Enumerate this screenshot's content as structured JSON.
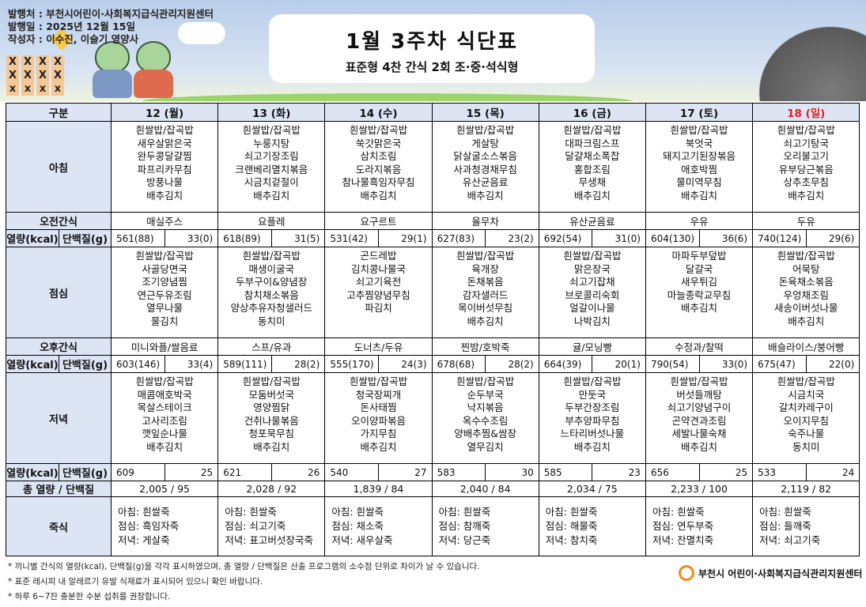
{
  "header": {
    "publisher": "발행처 : 부천시어린이·사회복지급식관리지원센터",
    "date": "발행일 : 2025년 12월 15일",
    "author": "작성자 : 이수진, 이슬기 영양사",
    "title": "1월 3주차 식단표",
    "subtitle": "표준형 4찬 간식 2회 조·중·석식형"
  },
  "labels": {
    "category": "구분",
    "breakfast": "아침",
    "am_snack": "오전간식",
    "kcal": "열량(kcal)",
    "protein": "단백질(g)",
    "lunch": "점심",
    "pm_snack": "오후간식",
    "dinner": "저녁",
    "total": "총 열량 / 단백질",
    "porridge": "죽식"
  },
  "colors": {
    "header_bg": "#dde5f4",
    "sunday": "#e02020"
  },
  "days": [
    {
      "date": "12 (월)",
      "breakfast": [
        "흰쌀밥/잡곡밥",
        "새우살맑은국",
        "완두콩달걀찜",
        "파프리카무침",
        "방풍나물",
        "배추김치"
      ],
      "am_snack": "매실주스",
      "am_kcal": "561(88)",
      "am_protein": "33(0)",
      "lunch": [
        "흰쌀밥/잡곡밥",
        "사골당면국",
        "조기양념찜",
        "연근두유조림",
        "열무나물",
        "물김치"
      ],
      "pm_snack": "미니와플/쌀음료",
      "pm_kcal": "603(146)",
      "pm_protein": "33(4)",
      "dinner": [
        "흰쌀밥/잡곡밥",
        "매콤애호박국",
        "목살스테이크",
        "고사리조림",
        "깻잎순나물",
        "배추김치"
      ],
      "dn_kcal": "609",
      "dn_protein": "25",
      "total": "2,005  /  95",
      "porridge": [
        "아침: 흰쌀죽",
        "점심: 흑임자죽",
        "저녁: 게살죽"
      ]
    },
    {
      "date": "13 (화)",
      "breakfast": [
        "흰쌀밥/잡곡밥",
        "누룽지탕",
        "쇠고기장조림",
        "크랜베리멸치볶음",
        "시금치겉절이",
        "배추김치"
      ],
      "am_snack": "요플레",
      "am_kcal": "618(89)",
      "am_protein": "31(5)",
      "lunch": [
        "흰쌀밥/잡곡밥",
        "매생이굴국",
        "두부구이&양념장",
        "참치채소볶음",
        "양상추유자청샐러드",
        "동치미"
      ],
      "pm_snack": "스프/유과",
      "pm_kcal": "589(111)",
      "pm_protein": "28(2)",
      "dinner": [
        "흰쌀밥/잡곡밥",
        "모둠버섯국",
        "영양찜닭",
        "건취나물볶음",
        "청포묵무침",
        "배추김치"
      ],
      "dn_kcal": "621",
      "dn_protein": "26",
      "total": "2,028  /  92",
      "porridge": [
        "아침: 흰쌀죽",
        "점심: 쇠고기죽",
        "저녁: 표고버섯장국죽"
      ]
    },
    {
      "date": "14 (수)",
      "breakfast": [
        "흰쌀밥/잡곡밥",
        "쑥갓맑은국",
        "삼치조림",
        "도라지볶음",
        "참나물흑임자무침",
        "배추김치"
      ],
      "am_snack": "요구르트",
      "am_kcal": "531(42)",
      "am_protein": "29(1)",
      "lunch": [
        "곤드레밥",
        "김치콩나물국",
        "쇠고기육전",
        "고추찜양념무침",
        "파김치"
      ],
      "pm_snack": "도너츠/두유",
      "pm_kcal": "555(170)",
      "pm_protein": "24(3)",
      "dinner": [
        "흰쌀밥/잡곡밥",
        "청국장찌개",
        "돈사태찜",
        "오이양파볶음",
        "가지무침",
        "배추김치"
      ],
      "dn_kcal": "540",
      "dn_protein": "27",
      "total": "1,839  /  84",
      "porridge": [
        "아침: 흰쌀죽",
        "점심: 채소죽",
        "저녁: 새우살죽"
      ]
    },
    {
      "date": "15 (목)",
      "breakfast": [
        "흰쌀밥/잡곡밥",
        "게살탕",
        "닭살굴소스볶음",
        "사과청경채무침",
        "유산균음료",
        "배추김치"
      ],
      "am_snack": "율무차",
      "am_kcal": "627(83)",
      "am_protein": "23(2)",
      "lunch": [
        "흰쌀밥/잡곡밥",
        "육개장",
        "돈채볶음",
        "감자샐러드",
        "목이버섯무침",
        "배추김치"
      ],
      "pm_snack": "찐밤/호박죽",
      "pm_kcal": "678(68)",
      "pm_protein": "28(2)",
      "dinner": [
        "흰쌀밥/잡곡밥",
        "순두부국",
        "낙지볶음",
        "옥수수조림",
        "양배추찜&쌈장",
        "열무김치"
      ],
      "dn_kcal": "583",
      "dn_protein": "30",
      "total": "2,040  /  84",
      "porridge": [
        "아침: 흰쌀죽",
        "점심: 참깨죽",
        "저녁: 당근죽"
      ]
    },
    {
      "date": "16 (금)",
      "breakfast": [
        "흰쌀밥/잡곡밥",
        "대파크림스프",
        "달걀채소폭찹",
        "홍합조림",
        "무생채",
        "배추김치"
      ],
      "am_snack": "유산균음료",
      "am_kcal": "692(54)",
      "am_protein": "31(0)",
      "lunch": [
        "흰쌀밥/잡곡밥",
        "맑은장국",
        "쇠고기잡채",
        "브로콜리숙회",
        "얼갈이나물",
        "나박김치"
      ],
      "pm_snack": "귤/모닝빵",
      "pm_kcal": "664(39)",
      "pm_protein": "20(1)",
      "dinner": [
        "흰쌀밥/잡곡밥",
        "만둣국",
        "두부간장조림",
        "부추양파무침",
        "느타리버섯나물",
        "배추김치"
      ],
      "dn_kcal": "585",
      "dn_protein": "23",
      "total": "2,034  /  75",
      "porridge": [
        "아침: 흰쌀죽",
        "점심: 해물죽",
        "저녁: 참치죽"
      ]
    },
    {
      "date": "17 (토)",
      "breakfast": [
        "흰쌀밥/잡곡밥",
        "북엇국",
        "돼지고기된장볶음",
        "애호박찜",
        "물미역무침",
        "배추김치"
      ],
      "am_snack": "우유",
      "am_kcal": "604(130)",
      "am_protein": "36(6)",
      "lunch": [
        "마파두부덮밥",
        "달걀국",
        "새우튀김",
        "마늘종락교무침",
        "배추김치"
      ],
      "pm_snack": "수정과/찰떡",
      "pm_kcal": "790(54)",
      "pm_protein": "33(0)",
      "dinner": [
        "흰쌀밥/잡곡밥",
        "버섯들깨탕",
        "쇠고기양념구이",
        "곤약견과조림",
        "세발나물숙채",
        "배추김치"
      ],
      "dn_kcal": "656",
      "dn_protein": "25",
      "total": "2,233  /  100",
      "porridge": [
        "아침: 흰쌀죽",
        "점심: 연두부죽",
        "저녁: 잔멸치죽"
      ]
    },
    {
      "date": "18 (일)",
      "breakfast": [
        "흰쌀밥/잡곡밥",
        "쇠고기탕국",
        "오리불고기",
        "유부당근볶음",
        "상추초무침",
        "배추김치"
      ],
      "am_snack": "두유",
      "am_kcal": "740(124)",
      "am_protein": "29(6)",
      "lunch": [
        "흰쌀밥/잡곡밥",
        "어묵탕",
        "돈육채소볶음",
        "우엉채조림",
        "새송이버섯나물",
        "배추김치"
      ],
      "pm_snack": "배슬라이스/붕어빵",
      "pm_kcal": "675(47)",
      "pm_protein": "22(0)",
      "dinner": [
        "흰쌀밥/잡곡밥",
        "시금치국",
        "갈치카레구이",
        "오이지무침",
        "숙주나물",
        "동치미"
      ],
      "dn_kcal": "533",
      "dn_protein": "24",
      "total": "2,119  /  82",
      "porridge": [
        "아침: 흰쌀죽",
        "점심: 들깨죽",
        "저녁: 쇠고기죽"
      ]
    }
  ],
  "notes": [
    "* 끼니별 간식의 열량(kcal), 단백질(g)을 각각 표시하였으며, 총 열량 / 단백질은 산출 프로그램의 소수점 단위로 차이가 날 수 있습니다.",
    "* 표준 레시피 내 알레르기 유발 식재료가 표시되어 있으니 확인 바랍니다.",
    "* 하루 6~7잔 충분한 수분 섭취를 권장합니다."
  ],
  "footer_logo": "부천시 어린이·사회복지급식관리지원센터"
}
